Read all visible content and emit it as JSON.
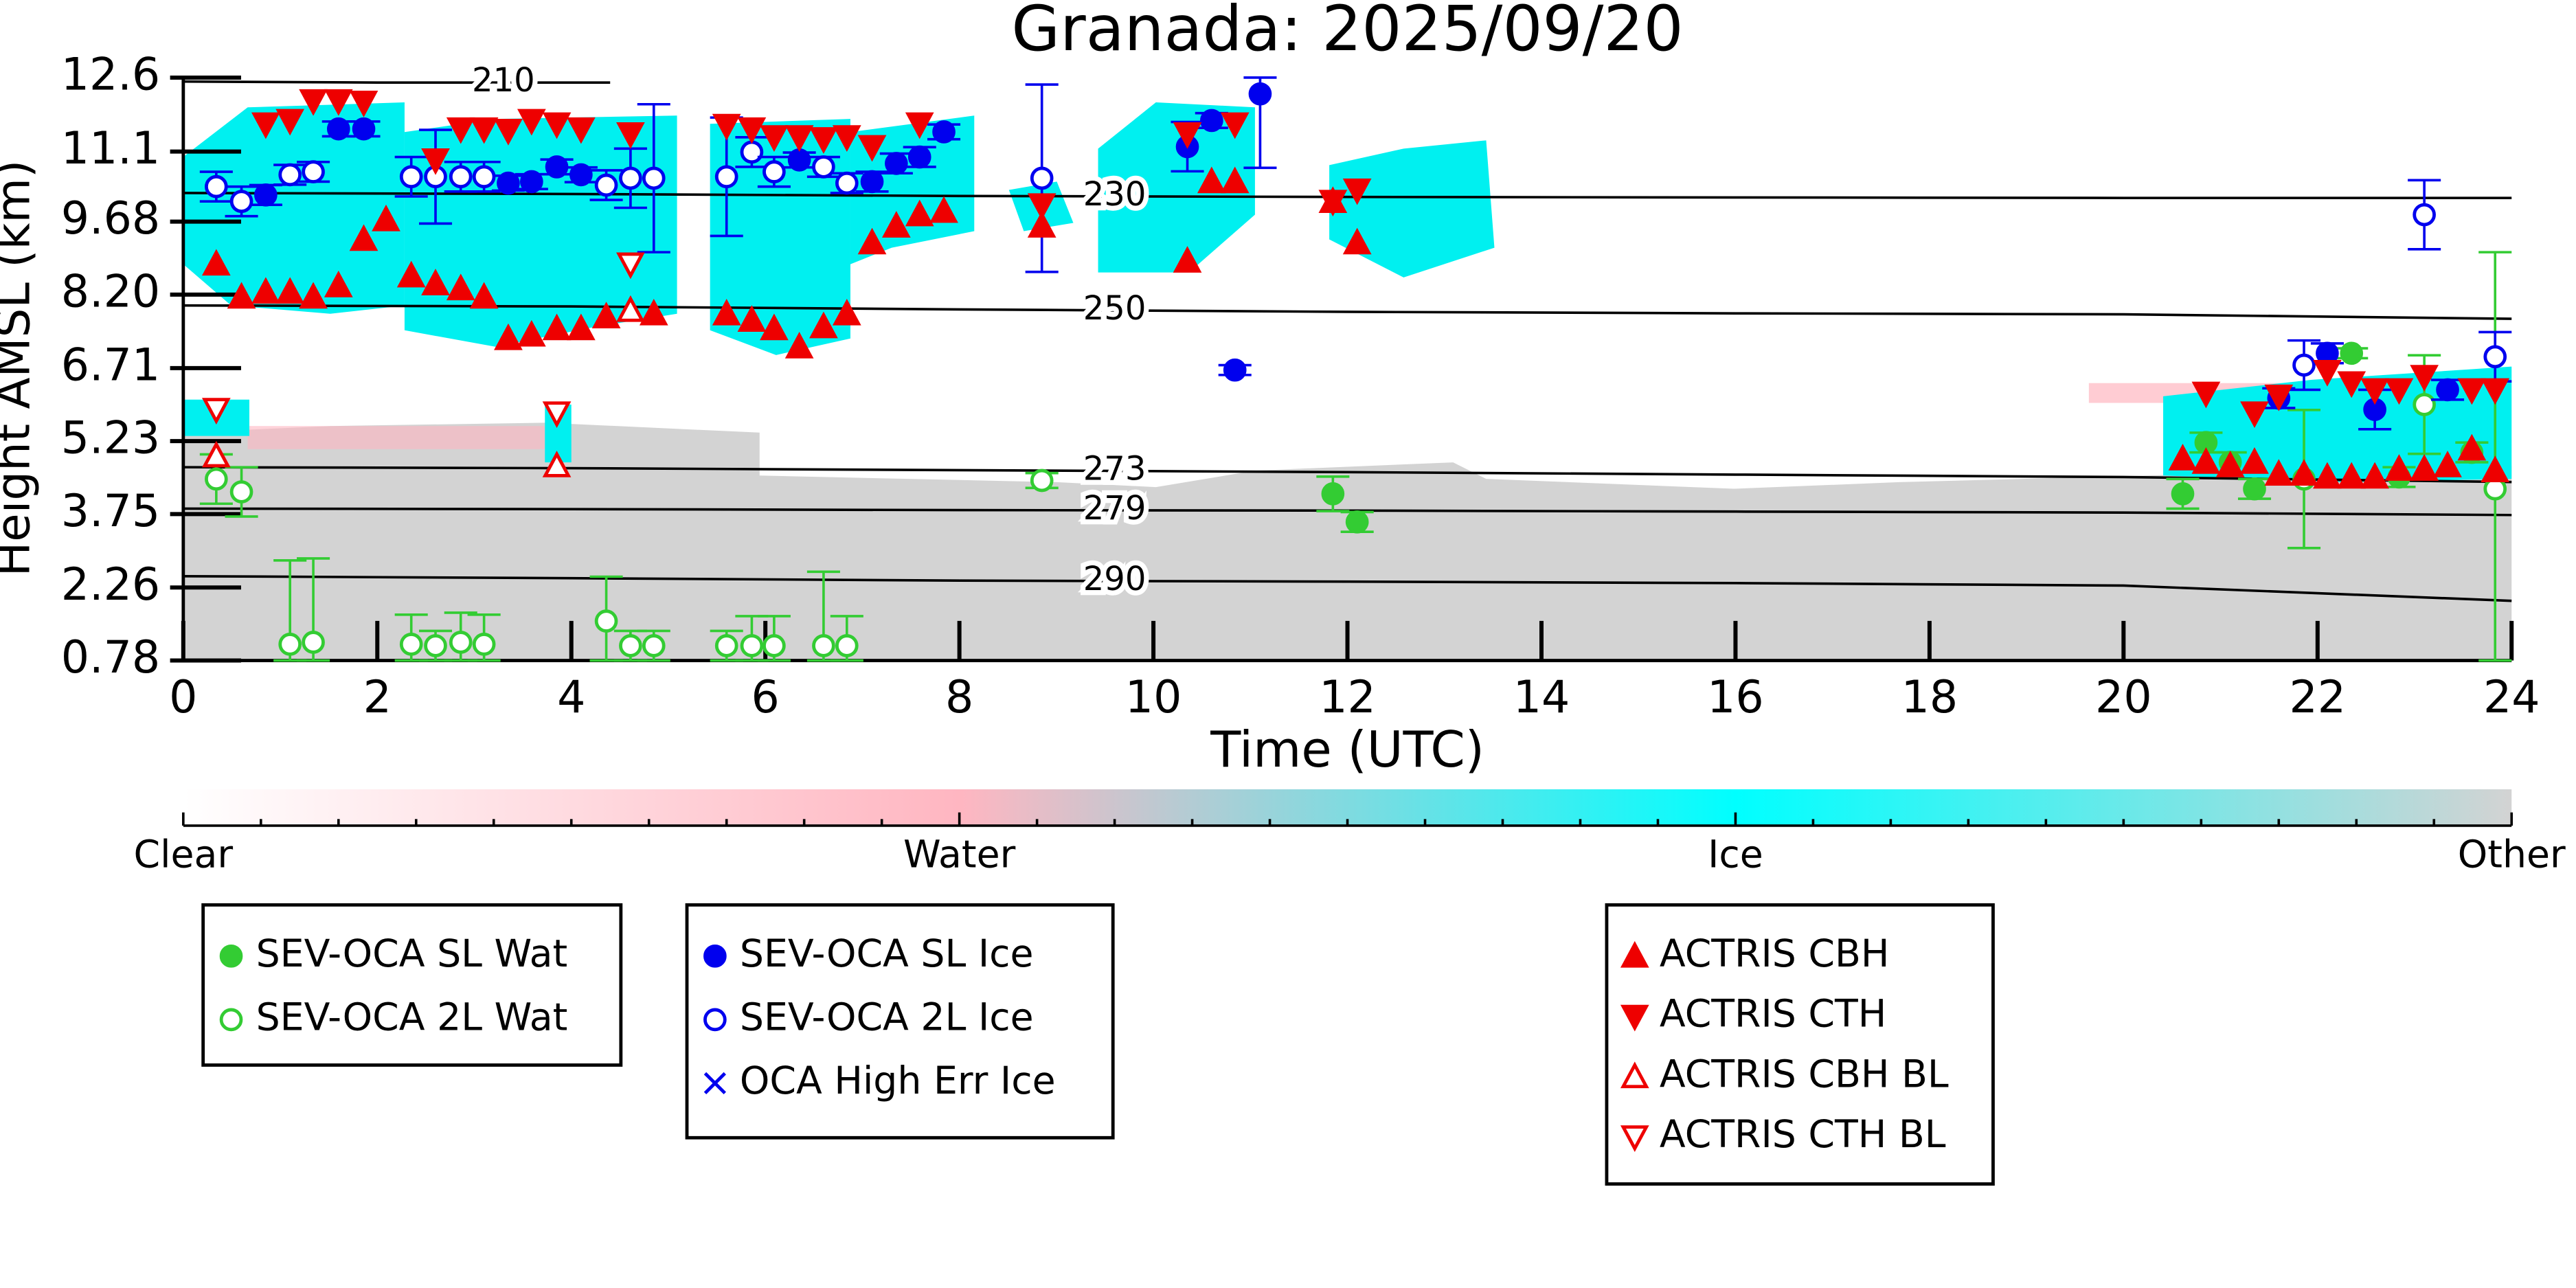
{
  "chart_data": {
    "type": "scatter",
    "title": "Granada: 2025/09/20",
    "xlabel": "Time (UTC)",
    "ylabel": "Height AMSL (km)",
    "xlim": [
      0,
      24
    ],
    "xticks": [
      0,
      2,
      4,
      6,
      8,
      10,
      12,
      14,
      16,
      18,
      20,
      22,
      24
    ],
    "ylim": [
      0.78,
      12.6
    ],
    "yticks": [
      0.78,
      2.26,
      3.75,
      5.23,
      6.71,
      {
        "value": 8.2,
        "label": "8.20"
      },
      9.68,
      11.1,
      12.6
    ],
    "colorbar": {
      "labels": [
        "Clear",
        "Water",
        "Ice",
        "Other"
      ],
      "colors": [
        "#ffffff",
        "#ffb6c1",
        "#00ffff",
        "#d3d3d3"
      ]
    },
    "contours": [
      {
        "label": 210,
        "x": [
          0,
          2,
          4.4
        ],
        "y": [
          12.52,
          12.5,
          12.5
        ]
      },
      {
        "label": 230,
        "x": [
          0,
          4,
          8,
          12,
          16,
          20,
          24
        ],
        "y": [
          10.26,
          10.24,
          10.2,
          10.18,
          10.17,
          10.16,
          10.16
        ]
      },
      {
        "label": 250,
        "x": [
          0,
          4,
          8,
          12,
          16,
          20,
          24
        ],
        "y": [
          7.98,
          7.96,
          7.9,
          7.85,
          7.82,
          7.8,
          7.71
        ]
      },
      {
        "label": 273,
        "x": [
          0,
          4,
          8,
          12,
          16,
          20,
          24
        ],
        "y": [
          4.7,
          4.68,
          4.64,
          4.6,
          4.55,
          4.5,
          4.4
        ]
      },
      {
        "label": 279,
        "x": [
          0,
          4,
          8,
          12,
          16,
          20,
          24
        ],
        "y": [
          3.86,
          3.85,
          3.83,
          3.82,
          3.8,
          3.78,
          3.73
        ]
      },
      {
        "label": 290,
        "x": [
          0,
          4,
          8,
          12,
          16,
          20,
          24
        ],
        "y": [
          2.49,
          2.45,
          2.4,
          2.38,
          2.35,
          2.3,
          1.99
        ]
      }
    ],
    "series": [
      {
        "name": "SEV-OCA SL Wat",
        "color": "#33cc33",
        "marker": "circle",
        "filled": true,
        "x": [
          11.85,
          12.1,
          20.61,
          20.85,
          21.1,
          21.35,
          22.35,
          22.84,
          23.59
        ],
        "y": [
          4.16,
          3.59,
          4.16,
          5.2,
          4.8,
          4.26,
          7.01,
          4.5,
          5.0
        ],
        "errors": [
          0.35,
          0.2,
          0.3,
          0.2,
          0.2,
          0.2,
          0.1,
          0.2,
          0.2
        ]
      },
      {
        "name": "SEV-OCA 2L Wat",
        "color": "#33cc33",
        "marker": "circle",
        "filled": false,
        "x": [
          0.34,
          0.6,
          1.1,
          1.34,
          2.35,
          2.6,
          2.86,
          3.1,
          4.36,
          4.61,
          4.85,
          5.6,
          5.86,
          6.09,
          6.6,
          6.84,
          8.85,
          21.86,
          23.1,
          23.83
        ],
        "y": [
          4.46,
          4.2,
          1.11,
          1.15,
          1.11,
          1.08,
          1.15,
          1.11,
          1.58,
          1.08,
          1.08,
          1.08,
          1.08,
          1.08,
          1.08,
          1.08,
          4.43,
          4.46,
          5.97,
          4.26
        ],
        "errors": [
          0.5,
          0.5,
          1.7,
          1.7,
          0.6,
          0.3,
          0.6,
          0.6,
          0.9,
          0.3,
          0.3,
          0.3,
          0.6,
          0.6,
          1.5,
          0.6,
          0.15,
          1.4,
          1.0,
          4.8
        ]
      },
      {
        "name": "SEV-OCA SL Ice",
        "color": "#0000ee",
        "marker": "circle",
        "filled": true,
        "x": [
          0.85,
          1.6,
          1.86,
          3.35,
          3.59,
          3.85,
          4.1,
          6.35,
          7.1,
          7.35,
          7.59,
          7.84,
          10.35,
          10.6,
          10.84,
          11.1,
          21.6,
          22.1,
          22.59,
          23.34
        ],
        "y": [
          10.22,
          11.56,
          11.56,
          10.46,
          10.49,
          10.79,
          10.63,
          10.93,
          10.49,
          10.86,
          10.99,
          11.5,
          11.2,
          11.73,
          6.67,
          12.27,
          6.1,
          7.01,
          5.87,
          6.27
        ],
        "errors": [
          0.2,
          0.15,
          0.15,
          0.15,
          0.15,
          0.15,
          0.15,
          0.15,
          0.2,
          0.2,
          0.2,
          0.15,
          0.5,
          0.15,
          0.1,
          1.5,
          0.2,
          0.2,
          0.4,
          0.2
        ]
      },
      {
        "name": "SEV-OCA 2L Ice",
        "color": "#0000ee",
        "marker": "circle",
        "filled": false,
        "x": [
          0.34,
          0.6,
          1.1,
          1.34,
          2.35,
          2.6,
          2.86,
          3.1,
          4.36,
          4.61,
          4.85,
          5.6,
          5.86,
          6.09,
          6.6,
          6.84,
          8.85,
          21.86,
          23.1,
          23.83
        ],
        "y": [
          10.39,
          10.09,
          10.63,
          10.69,
          10.59,
          10.59,
          10.59,
          10.59,
          10.42,
          10.56,
          10.56,
          10.59,
          11.09,
          10.69,
          10.79,
          10.46,
          10.56,
          6.77,
          9.82,
          6.94
        ],
        "errors": [
          0.3,
          0.3,
          0.2,
          0.2,
          0.4,
          0.95,
          0.3,
          0.3,
          0.3,
          0.6,
          1.5,
          1.2,
          0.3,
          0.3,
          0.2,
          0.2,
          1.9,
          0.5,
          0.7,
          0.5
        ]
      },
      {
        "name": "OCA High Err Ice",
        "color": "#0000ee",
        "marker": "x",
        "filled": true,
        "x": [],
        "y": []
      },
      {
        "name": "ACTRIS CBH",
        "color": "#ee0000",
        "marker": "triangle-up",
        "filled": true,
        "x": [
          0.34,
          0.6,
          0.85,
          1.1,
          1.34,
          1.6,
          1.86,
          2.09,
          2.35,
          2.6,
          2.86,
          3.1,
          3.35,
          3.59,
          3.85,
          4.1,
          4.36,
          4.85,
          5.6,
          5.86,
          6.09,
          6.35,
          6.6,
          6.84,
          7.1,
          7.35,
          7.59,
          7.84,
          8.85,
          10.35,
          10.6,
          10.84,
          11.85,
          12.1,
          20.61,
          20.85,
          21.1,
          21.35,
          21.6,
          21.86,
          22.1,
          22.35,
          22.59,
          22.84,
          23.1,
          23.34,
          23.59,
          23.83
        ],
        "y": [
          8.82,
          8.15,
          8.25,
          8.25,
          8.15,
          8.38,
          9.32,
          9.72,
          8.58,
          8.42,
          8.32,
          8.15,
          7.31,
          7.38,
          7.51,
          7.51,
          7.75,
          7.81,
          7.81,
          7.68,
          7.51,
          7.14,
          7.55,
          7.81,
          9.25,
          9.59,
          9.82,
          9.89,
          9.59,
          8.88,
          10.49,
          10.49,
          10.09,
          9.25,
          4.87,
          4.8,
          4.73,
          4.8,
          4.56,
          4.56,
          4.5,
          4.5,
          4.5,
          4.66,
          4.66,
          4.73,
          5.07,
          4.63
        ]
      },
      {
        "name": "ACTRIS CTH",
        "color": "#ee0000",
        "marker": "triangle-down",
        "filled": true,
        "x": [
          0.85,
          1.1,
          1.34,
          1.6,
          1.86,
          2.6,
          2.86,
          3.1,
          3.35,
          3.59,
          3.85,
          4.1,
          4.61,
          5.6,
          5.86,
          6.09,
          6.35,
          6.6,
          6.84,
          7.1,
          7.59,
          8.85,
          10.35,
          10.84,
          11.85,
          12.1,
          20.85,
          21.35,
          21.6,
          22.1,
          22.35,
          22.59,
          22.84,
          23.1,
          23.59,
          23.83
        ],
        "y": [
          11.66,
          11.73,
          12.13,
          12.13,
          12.1,
          10.93,
          11.56,
          11.56,
          11.53,
          11.73,
          11.66,
          11.56,
          11.46,
          11.63,
          11.56,
          11.4,
          11.4,
          11.36,
          11.4,
          11.2,
          11.66,
          10.02,
          11.46,
          11.66,
          10.09,
          10.32,
          6.2,
          5.8,
          6.14,
          6.64,
          6.41,
          6.27,
          6.27,
          6.54,
          6.27,
          6.27
        ]
      },
      {
        "name": "ACTRIS CBH BL",
        "color": "#ee0000",
        "marker": "triangle-up",
        "filled": false,
        "x": [
          0.34,
          3.85,
          4.61
        ],
        "y": [
          4.93,
          4.73,
          7.88
        ]
      },
      {
        "name": "ACTRIS CTH BL",
        "color": "#ee0000",
        "marker": "triangle-down",
        "filled": false,
        "x": [
          0.34,
          3.85,
          4.61
        ],
        "y": [
          5.87,
          5.8,
          8.82
        ]
      }
    ]
  }
}
